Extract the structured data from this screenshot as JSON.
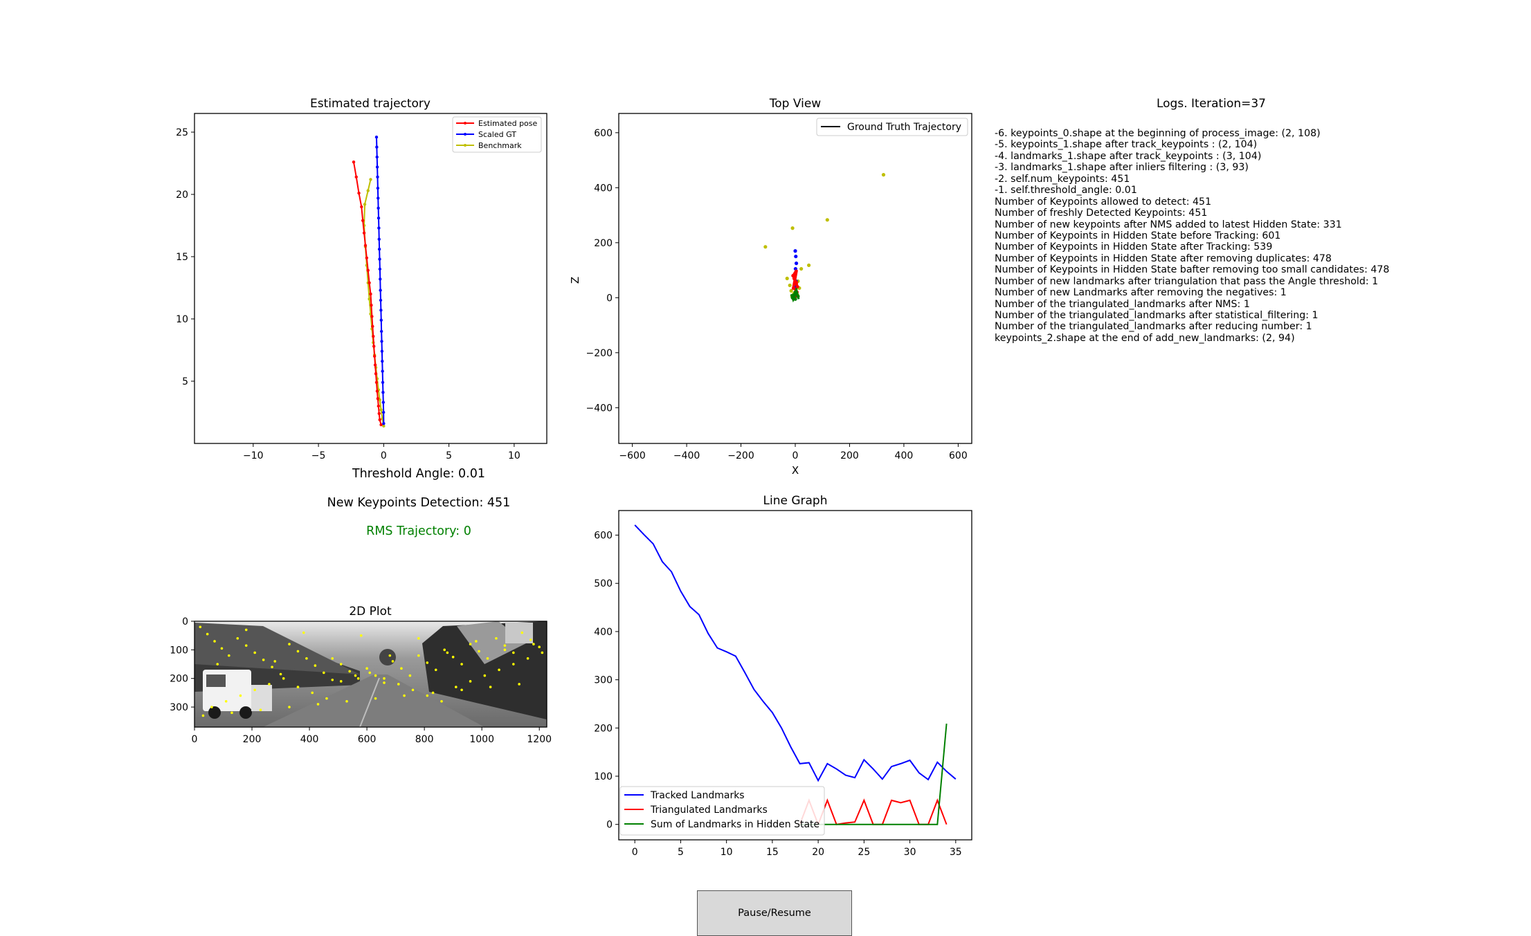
{
  "estimated_trajectory": {
    "title": "Estimated trajectory",
    "legend": [
      "Estimated pose",
      "Scaled GT",
      "Benchmark"
    ],
    "colors": {
      "estimated": "#ff0000",
      "gt": "#0000ff",
      "benchmark": "#bfbf00"
    },
    "xticks": [
      "−10",
      "−5",
      "0",
      "5",
      "10"
    ],
    "yticks": [
      "5",
      "10",
      "15",
      "20",
      "25"
    ]
  },
  "top_view": {
    "title": "Top View",
    "legend": "Ground Truth Trajectory",
    "xlabel": "X",
    "ylabel": "Z",
    "xticks": [
      "−600",
      "−400",
      "−200",
      "0",
      "200",
      "400",
      "600"
    ],
    "yticks": [
      "600",
      "400",
      "200",
      "0",
      "−200",
      "−400"
    ]
  },
  "logs": {
    "title": "Logs. Iteration=37",
    "lines": [
      "-6. keypoints_0.shape at the beginning of process_image: (2, 108)",
      "-5. keypoints_1.shape after track_keypoints : (2, 104)",
      "-4. landmarks_1.shape after track_keypoints : (3, 104)",
      "-3. landmarks_1.shape after inliers filtering : (3, 93)",
      "-2. self.num_keypoints: 451",
      "-1. self.threshold_angle: 0.01",
      "Number of Keypoints allowed to detect: 451",
      "Number of freshly Detected Keypoints: 451",
      "Number of new keypoints after NMS added to latest Hidden State: 331",
      "Number of Keypoints in Hidden State before Tracking: 601",
      "Number of Keypoints in Hidden State after Tracking: 539",
      "Number of Keypoints in Hidden State after removing duplicates: 478",
      "Number of Keypoints in Hidden State bafter removing too small candidates: 478",
      "Number of new landmarks after triangulation that pass the Angle threshold: 1",
      "Number of new Landmarks after removing the negatives: 1",
      "Number of the triangulated_landmarks after NMS: 1",
      "Number of the triangulated_landmarks after statistical_filtering: 1",
      "Number of the triangulated_landmarks after reducing number: 1",
      "keypoints_2.shape at the end of add_new_landmarks: (2, 94)"
    ]
  },
  "status": {
    "threshold_angle": "Threshold Angle: 0.01",
    "new_keypoints": "New Keypoints Detection: 451",
    "rms": "RMS Trajectory: 0",
    "rms_color": "#008000"
  },
  "plot2d": {
    "title": "2D Plot",
    "xticks": [
      "0",
      "200",
      "400",
      "600",
      "800",
      "1000",
      "1200"
    ],
    "yticks": [
      "0",
      "100",
      "200",
      "300"
    ]
  },
  "line_graph": {
    "title": "Line Graph",
    "xticks": [
      "0",
      "5",
      "10",
      "15",
      "20",
      "25",
      "30",
      "35"
    ],
    "yticks": [
      "600",
      "500",
      "400",
      "300",
      "200",
      "100",
      "0"
    ],
    "legend": [
      "Tracked Landmarks",
      "Triangulated Landmarks",
      "Sum of Landmarks in Hidden State"
    ]
  },
  "pause_button": "Pause/Resume",
  "chart_data": [
    {
      "type": "line",
      "title": "Estimated trajectory",
      "xlim": [
        -14.5,
        12.5
      ],
      "ylim": [
        0,
        26.5
      ],
      "legend_position": "top-right",
      "series": [
        {
          "name": "Estimated pose",
          "color": "#ff0000",
          "x": [
            -2.3,
            -2.1,
            -1.9,
            -1.7,
            -1.6,
            -1.5,
            -1.4,
            -1.3,
            -1.2,
            -1.1,
            -1.0,
            -0.95,
            -0.9,
            -0.85,
            -0.8,
            -0.75,
            -0.7,
            -0.65,
            -0.6,
            -0.55,
            -0.5,
            -0.45,
            -0.4,
            -0.35,
            -0.3,
            -0.2
          ],
          "y": [
            22.6,
            21.4,
            20.1,
            19.0,
            17.9,
            16.9,
            15.9,
            14.9,
            13.9,
            12.9,
            12.0,
            11.1,
            10.2,
            9.4,
            8.6,
            7.8,
            7.0,
            6.3,
            5.6,
            4.9,
            4.2,
            3.6,
            3.0,
            2.4,
            1.9,
            1.5
          ]
        },
        {
          "name": "Scaled GT",
          "color": "#0000ff",
          "x": [
            -0.55,
            -0.53,
            -0.51,
            -0.49,
            -0.47,
            -0.45,
            -0.43,
            -0.41,
            -0.39,
            -0.37,
            -0.35,
            -0.33,
            -0.31,
            -0.29,
            -0.27,
            -0.25,
            -0.23,
            -0.21,
            -0.19,
            -0.17,
            -0.15,
            -0.13,
            -0.11,
            -0.09,
            -0.07,
            -0.05,
            -0.03,
            -0.01,
            0.0
          ],
          "y": [
            24.6,
            23.8,
            23.0,
            22.2,
            21.4,
            20.5,
            19.7,
            18.9,
            18.1,
            17.3,
            16.4,
            15.6,
            14.8,
            14.0,
            13.2,
            12.3,
            11.5,
            10.7,
            9.9,
            9.0,
            8.2,
            7.4,
            6.6,
            5.8,
            4.9,
            4.1,
            3.3,
            2.5,
            1.6
          ]
        },
        {
          "name": "Benchmark",
          "color": "#bfbf00",
          "x": [
            -1.0,
            -1.2,
            -1.45,
            -1.5,
            -1.4,
            -1.3,
            -1.2,
            -1.1,
            -1.0,
            -0.9,
            -0.8,
            -0.7,
            -0.6,
            -0.5,
            -0.4,
            -0.3,
            -0.2,
            -0.1,
            0.0
          ],
          "y": [
            21.2,
            20.3,
            19.2,
            17.5,
            15.8,
            14.3,
            12.9,
            11.6,
            10.4,
            9.2,
            8.1,
            7.1,
            6.1,
            5.2,
            4.3,
            3.5,
            2.7,
            2.0,
            1.4
          ]
        }
      ]
    },
    {
      "type": "scatter",
      "title": "Top View",
      "xlabel": "X",
      "ylabel": "Z",
      "xlim": [
        -650,
        650
      ],
      "ylim": [
        -530,
        670
      ],
      "legend_position": "top-right",
      "series": [
        {
          "name": "Ground Truth Trajectory",
          "color": "#000000",
          "x": [],
          "y": []
        },
        {
          "color": "#bfbf00",
          "x": [
            325,
            118,
            -110,
            -10,
            50,
            22,
            -30,
            10,
            -20,
            15,
            -15,
            -5,
            8,
            -12
          ],
          "y": [
            447,
            283,
            185,
            253,
            118,
            105,
            70,
            60,
            45,
            35,
            25,
            15,
            10,
            5
          ]
        },
        {
          "color": "#0000ff",
          "x": [
            0,
            2,
            4,
            1,
            -1,
            3,
            0,
            2
          ],
          "y": [
            170,
            150,
            125,
            105,
            85,
            60,
            40,
            20
          ]
        },
        {
          "color": "#ff0000",
          "x": [
            -8,
            -4,
            0,
            4,
            8,
            -6,
            2,
            6,
            -2,
            0
          ],
          "y": [
            80,
            70,
            60,
            50,
            40,
            35,
            30,
            20,
            10,
            5
          ]
        },
        {
          "color": "#008000",
          "x": [
            -10,
            -5,
            0,
            5,
            10,
            0
          ],
          "y": [
            0,
            10,
            20,
            15,
            5,
            -5
          ]
        }
      ]
    },
    {
      "type": "scatter",
      "title": "2D Plot",
      "xlim": [
        0,
        1226
      ],
      "ylim": [
        370,
        0
      ],
      "note_background": "grayscale street image",
      "series": [
        {
          "color": "#ffff00",
          "x": [
            20,
            45,
            70,
            95,
            120,
            150,
            180,
            210,
            240,
            270,
            300,
            330,
            360,
            390,
            420,
            450,
            480,
            510,
            540,
            570,
            600,
            630,
            660,
            690,
            720,
            750,
            780,
            810,
            840,
            870,
            900,
            930,
            960,
            990,
            1020,
            1050,
            1080,
            1110,
            1140,
            1170,
            1200,
            60,
            110,
            160,
            210,
            260,
            310,
            360,
            410,
            460,
            510,
            560,
            610,
            660,
            710,
            760,
            810,
            860,
            910,
            960,
            1010,
            1060,
            1110,
            1160,
            1210,
            30,
            130,
            230,
            330,
            430,
            530,
            630,
            730,
            830,
            930,
            1030,
            1130,
            80,
            280,
            480,
            680,
            880,
            1080,
            180,
            380,
            580,
            780,
            980,
            1180
          ],
          "y": [
            20,
            45,
            70,
            95,
            120,
            60,
            85,
            110,
            135,
            160,
            185,
            80,
            105,
            130,
            155,
            180,
            205,
            150,
            175,
            200,
            165,
            190,
            215,
            140,
            165,
            190,
            120,
            145,
            170,
            100,
            125,
            150,
            80,
            105,
            130,
            60,
            85,
            110,
            40,
            65,
            90,
            300,
            280,
            260,
            240,
            220,
            200,
            230,
            250,
            270,
            210,
            190,
            180,
            200,
            220,
            240,
            260,
            280,
            230,
            210,
            190,
            170,
            150,
            130,
            110,
            330,
            320,
            310,
            300,
            290,
            280,
            270,
            260,
            250,
            240,
            230,
            220,
            150,
            140,
            130,
            120,
            110,
            100,
            30,
            40,
            50,
            60,
            70,
            80
          ]
        }
      ]
    },
    {
      "type": "line",
      "title": "Line Graph",
      "xlim": [
        -1.75,
        36.75
      ],
      "ylim": [
        -32,
        651
      ],
      "legend_position": "lower-left",
      "x": [
        0,
        1,
        2,
        3,
        4,
        5,
        6,
        7,
        8,
        9,
        10,
        11,
        12,
        13,
        14,
        15,
        16,
        17,
        18,
        19,
        20,
        21,
        22,
        23,
        24,
        25,
        26,
        27,
        28,
        29,
        30,
        31,
        32,
        33,
        34,
        35
      ],
      "series": [
        {
          "name": "Tracked Landmarks",
          "color": "#0000ff",
          "values": [
            621,
            601,
            582,
            545,
            524,
            484,
            452,
            435,
            396,
            366,
            358,
            349,
            315,
            280,
            255,
            232,
            200,
            161,
            126,
            128,
            91,
            126,
            115,
            102,
            97,
            134,
            115,
            94,
            120,
            126,
            133,
            107,
            93,
            129,
            110,
            94
          ]
        },
        {
          "name": "Triangulated Landmarks",
          "color": "#ff0000",
          "values": [
            null,
            null,
            null,
            null,
            null,
            null,
            null,
            null,
            null,
            null,
            null,
            null,
            null,
            null,
            null,
            null,
            null,
            null,
            0,
            50,
            0,
            50,
            0,
            3,
            5,
            50,
            0,
            0,
            50,
            45,
            50,
            0,
            0,
            50,
            0,
            null
          ]
        },
        {
          "name": "Sum of Landmarks in Hidden State",
          "color": "#008000",
          "values": [
            null,
            null,
            null,
            null,
            null,
            null,
            null,
            null,
            null,
            null,
            null,
            null,
            null,
            null,
            null,
            null,
            null,
            null,
            0,
            0,
            0,
            0,
            0,
            0,
            0,
            0,
            0,
            0,
            0,
            0,
            0,
            0,
            0,
            0,
            209,
            null
          ]
        }
      ]
    }
  ]
}
